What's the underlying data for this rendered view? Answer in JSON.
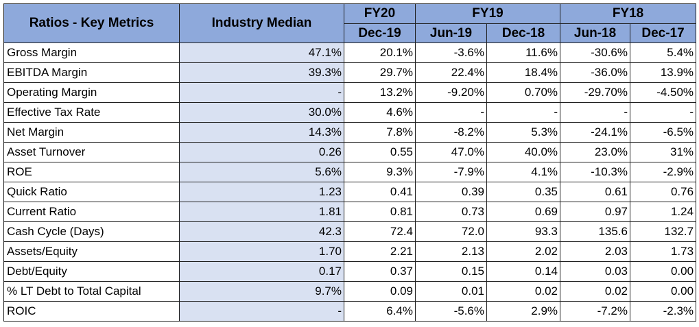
{
  "header": {
    "metrics_label": "Ratios - Key Metrics",
    "median_label": "Industry Median",
    "fy_groups": [
      "FY20",
      "FY19",
      "FY18"
    ],
    "periods": [
      "Dec-19",
      "Jun-19",
      "Dec-18",
      "Jun-18",
      "Dec-17"
    ]
  },
  "rows": [
    {
      "metric": "Gross Margin",
      "median": "47.1%",
      "values": [
        "20.1%",
        "-3.6%",
        "11.6%",
        "-30.6%",
        "5.4%"
      ]
    },
    {
      "metric": "EBITDA Margin",
      "median": "39.3%",
      "values": [
        "29.7%",
        "22.4%",
        "18.4%",
        "-36.0%",
        "13.9%"
      ]
    },
    {
      "metric": "Operating Margin",
      "median": "-",
      "values": [
        "13.2%",
        "-9.20%",
        "0.70%",
        "-29.70%",
        "-4.50%"
      ]
    },
    {
      "metric": "Effective Tax Rate",
      "median": "30.0%",
      "values": [
        "4.6%",
        "-",
        "-",
        "-",
        "-"
      ]
    },
    {
      "metric": "Net Margin",
      "median": "14.3%",
      "values": [
        "7.8%",
        "-8.2%",
        "5.3%",
        "-24.1%",
        "-6.5%"
      ]
    },
    {
      "metric": "Asset Turnover",
      "median": "0.26",
      "values": [
        "0.55",
        "47.0%",
        "40.0%",
        "23.0%",
        "31%"
      ]
    },
    {
      "metric": "ROE",
      "median": "5.6%",
      "values": [
        "9.3%",
        "-7.9%",
        "4.1%",
        "-10.3%",
        "-2.9%"
      ]
    },
    {
      "metric": "Quick Ratio",
      "median": "1.23",
      "values": [
        "0.41",
        "0.39",
        "0.35",
        "0.61",
        "0.76"
      ]
    },
    {
      "metric": "Current Ratio",
      "median": "1.81",
      "values": [
        "0.81",
        "0.73",
        "0.69",
        "0.97",
        "1.24"
      ]
    },
    {
      "metric": "Cash Cycle (Days)",
      "median": "42.3",
      "values": [
        "72.4",
        "72.0",
        "93.3",
        "135.6",
        "132.7"
      ]
    },
    {
      "metric": "Assets/Equity",
      "median": "1.70",
      "values": [
        "2.21",
        "2.13",
        "2.02",
        "2.03",
        "1.73"
      ]
    },
    {
      "metric": "Debt/Equity",
      "median": "0.17",
      "values": [
        "0.37",
        "0.15",
        "0.14",
        "0.03",
        "0.00"
      ]
    },
    {
      "metric": "% LT Debt to Total Capital",
      "median": "9.7%",
      "values": [
        "0.09",
        "0.01",
        "0.02",
        "0.02",
        "0.00"
      ]
    },
    {
      "metric": "ROIC",
      "median": "-",
      "values": [
        "6.4%",
        "-5.6%",
        "2.9%",
        "-7.2%",
        "-2.3%"
      ]
    }
  ],
  "colors": {
    "header_bg": "#8ea9db",
    "median_bg": "#d9e1f2",
    "cell_bg": "#ffffff",
    "border": "#1f1f1f"
  }
}
